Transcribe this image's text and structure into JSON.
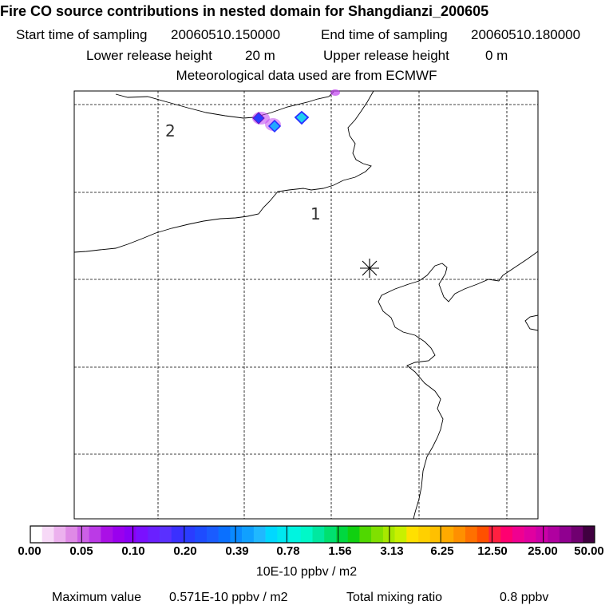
{
  "header": {
    "title": "Fire CO source contributions in nested domain for Shangdianzi_200605",
    "start_label": "Start time of sampling",
    "start_value": "20060510.150000",
    "end_label": "End time of sampling",
    "end_value": "20060510.180000",
    "lower_label": "Lower release height",
    "lower_value": "20 m",
    "upper_label": "Upper release height",
    "upper_value": "0 m",
    "met_text": "Meteorological data used are from ECMWF"
  },
  "map": {
    "region_labels": [
      "2",
      "1"
    ],
    "station_marker": "receptor-star",
    "hotspot_color_primary": "#22c8e6",
    "hotspot_color_halo": "#a020f0"
  },
  "colorbar": {
    "tick_labels": [
      "0.00",
      "0.05",
      "0.10",
      "0.20",
      "0.39",
      "0.78",
      "1.56",
      "3.13",
      "6.25",
      "12.50",
      "25.00",
      "50.00"
    ],
    "colors": [
      "#ffffff",
      "#f7d9f7",
      "#ecb1ee",
      "#df8ae6",
      "#cc60e6",
      "#bb3ae6",
      "#aa10e6",
      "#9a00ee",
      "#8a00f6",
      "#7a10ff",
      "#6a20ff",
      "#5a30ff",
      "#3a30ff",
      "#2a3cff",
      "#1e4cff",
      "#1a5cff",
      "#0a70ff",
      "#0a8aff",
      "#10a0ff",
      "#20b8ff",
      "#00d8ff",
      "#00e8f0",
      "#00f4e0",
      "#00f8c8",
      "#00e8a0",
      "#00e070",
      "#00d840",
      "#10d010",
      "#50d800",
      "#80e000",
      "#a8e800",
      "#c8f000",
      "#ffe000",
      "#ffd000",
      "#ffc000",
      "#ffaa00",
      "#ff9000",
      "#ff7000",
      "#ff5000",
      "#ff2040",
      "#ff0070",
      "#f00090",
      "#e000a0",
      "#cc00a8",
      "#b000a0",
      "#900090",
      "#700070",
      "#400040"
    ],
    "units": "10E-10 ppbv / m2"
  },
  "footer": {
    "max_label": "Maximum value",
    "max_value": "0.571E-10 ppbv / m2",
    "total_label": "Total mixing ratio",
    "total_value": "0.8 ppbv"
  }
}
